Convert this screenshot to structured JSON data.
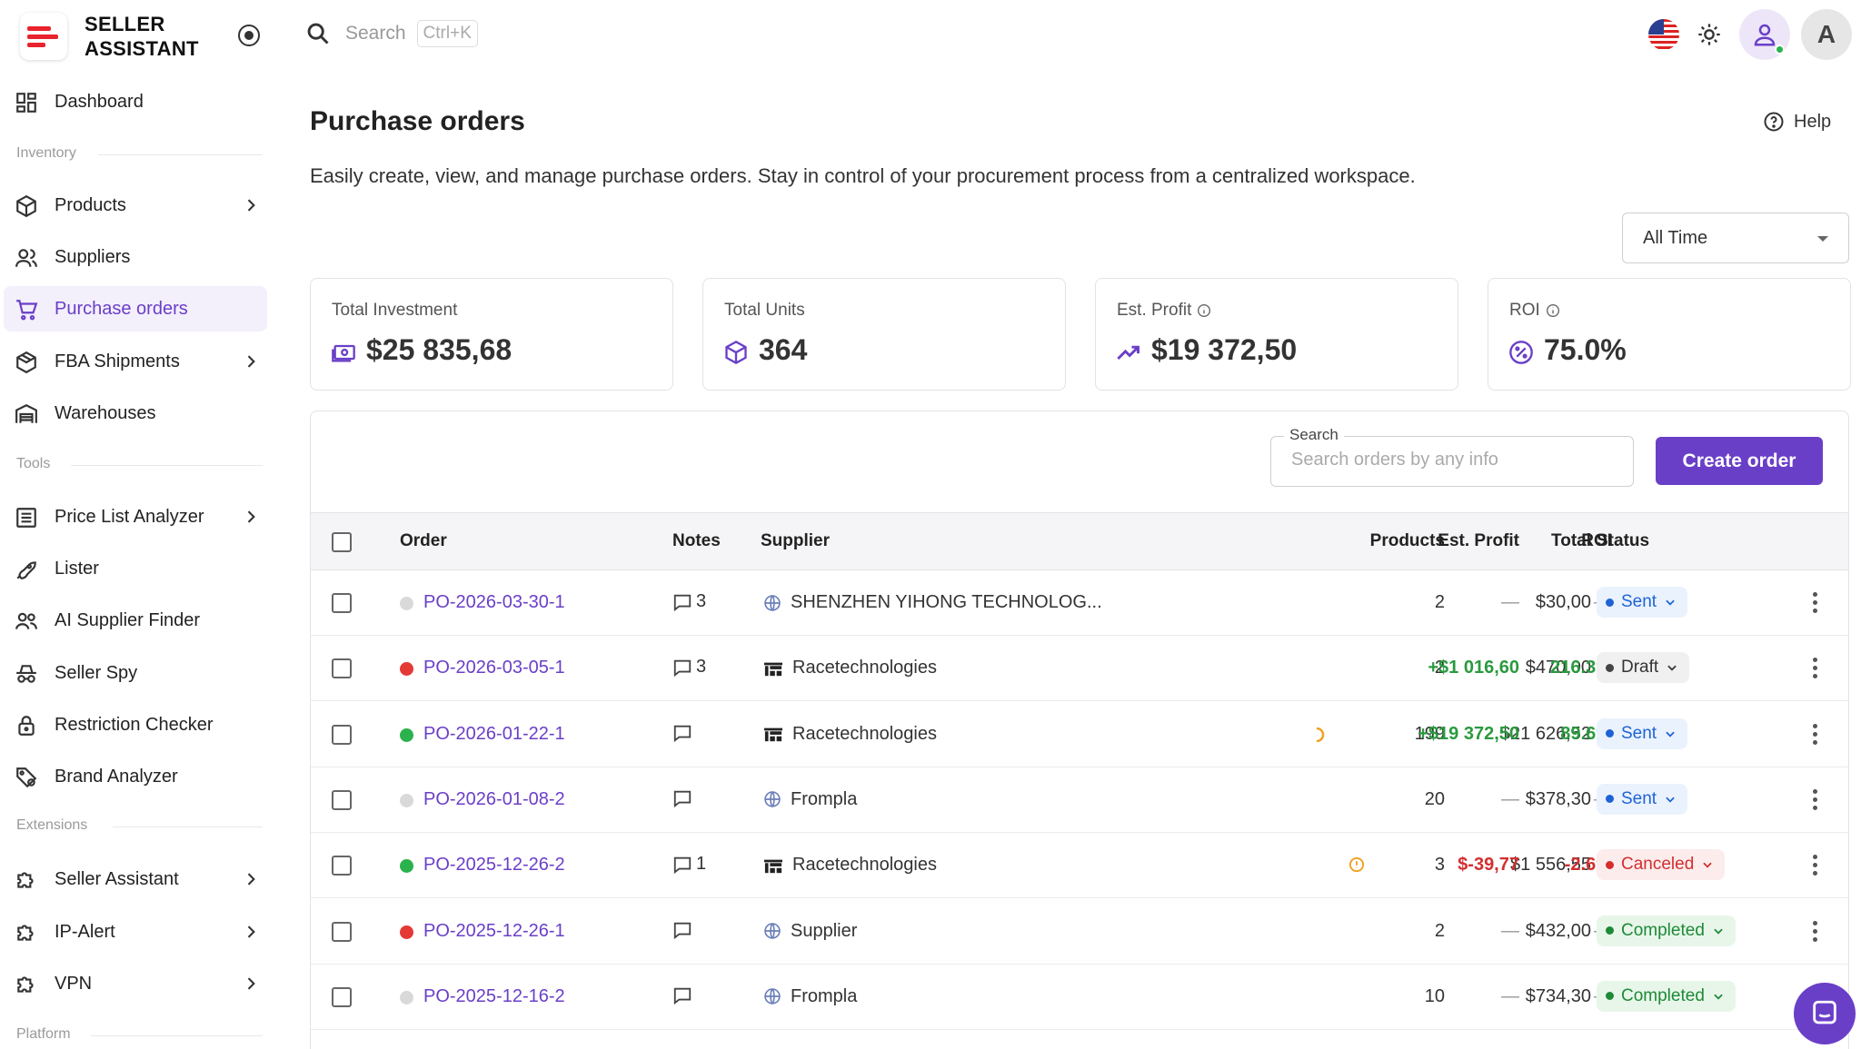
{
  "brand": {
    "line1": "SELLER",
    "line2": "ASSISTANT"
  },
  "search": {
    "placeholder": "Search",
    "shortcut": "Ctrl+K"
  },
  "sidebar": {
    "dashboard": "Dashboard",
    "sections": {
      "inventory": "Inventory",
      "tools": "Tools",
      "extensions": "Extensions",
      "platform": "Platform"
    },
    "inventory": [
      "Products",
      "Suppliers",
      "Purchase orders",
      "FBA Shipments",
      "Warehouses"
    ],
    "tools": [
      "Price List Analyzer",
      "Lister",
      "AI Supplier Finder",
      "Seller Spy",
      "Restriction Checker",
      "Brand Analyzer"
    ],
    "extensions": [
      "Seller Assistant",
      "IP-Alert",
      "VPN"
    ]
  },
  "user": {
    "initial": "A"
  },
  "page": {
    "title": "Purchase orders",
    "help": "Help",
    "subtitle": "Easily create, view, and manage purchase orders. Stay in control of your procurement process from a centralized workspace.",
    "period": "All Time"
  },
  "stats": {
    "investment": {
      "label": "Total Investment",
      "value": "$25 835,68"
    },
    "units": {
      "label": "Total Units",
      "value": "364"
    },
    "profit": {
      "label": "Est. Profit",
      "value": "$19 372,50"
    },
    "roi": {
      "label": "ROI",
      "value": "75.0%"
    }
  },
  "table_search": {
    "label": "Search",
    "placeholder": "Search orders by any info"
  },
  "create_button": "Create order",
  "columns": {
    "order": "Order",
    "notes": "Notes",
    "supplier": "Supplier",
    "products": "Products",
    "total": "Total",
    "profit": "Est. Profit",
    "roi": "ROI",
    "status": "Status"
  },
  "rows": [
    {
      "order": "PO-2026-03-30-1",
      "notes": "3",
      "supplier": "SHENZHEN YIHONG TECHNOLOG...",
      "products": "2",
      "total": "$30,00",
      "profit": "—",
      "roi": "—",
      "status": "Sent"
    },
    {
      "order": "PO-2026-03-05-1",
      "notes": "3",
      "supplier": "Racetechnologies",
      "products": "2",
      "total": "$470,00",
      "profit": "+$1 016,60",
      "roi": "216.3%",
      "status": "Draft"
    },
    {
      "order": "PO-2026-01-22-1",
      "notes": "",
      "supplier": "Racetechnologies",
      "products": "199",
      "total": "$21 626,52",
      "profit": "+$19 372,50",
      "roi": "89.6%",
      "status": "Sent"
    },
    {
      "order": "PO-2026-01-08-2",
      "notes": "",
      "supplier": "Frompla",
      "products": "20",
      "total": "$378,30",
      "profit": "—",
      "roi": "—",
      "status": "Sent"
    },
    {
      "order": "PO-2025-12-26-2",
      "notes": "1",
      "supplier": "Racetechnologies",
      "products": "3",
      "total": "$1 556,55",
      "profit": "$-39,77",
      "roi": "-2.6%",
      "status": "Canceled"
    },
    {
      "order": "PO-2025-12-26-1",
      "notes": "",
      "supplier": "Supplier",
      "products": "2",
      "total": "$432,00",
      "profit": "—",
      "roi": "—",
      "status": "Completed"
    },
    {
      "order": "PO-2025-12-16-2",
      "notes": "",
      "supplier": "Frompla",
      "products": "10",
      "total": "$734,30",
      "profit": "—",
      "roi": "—",
      "status": "Completed"
    }
  ],
  "colors": {
    "accent": "#6a3fc8",
    "positive": "#2a9a3e",
    "negative": "#d32f2f",
    "brand_red": "#e8232d"
  }
}
